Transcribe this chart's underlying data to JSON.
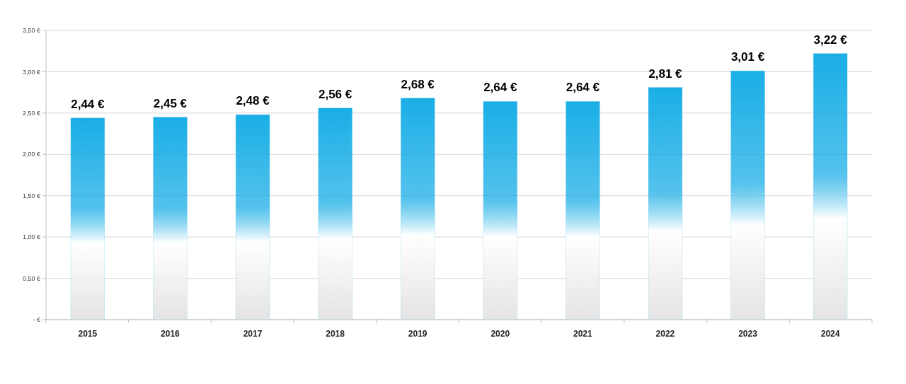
{
  "chart_data": {
    "type": "bar",
    "categories": [
      "2015",
      "2016",
      "2017",
      "2018",
      "2019",
      "2020",
      "2021",
      "2022",
      "2023",
      "2024"
    ],
    "values": [
      2.44,
      2.45,
      2.48,
      2.56,
      2.68,
      2.64,
      2.64,
      2.81,
      3.01,
      3.22
    ],
    "value_labels": [
      "2,44 €",
      "2,45 €",
      "2,48 €",
      "2,56 €",
      "2,68 €",
      "2,64 €",
      "2,64 €",
      "2,81 €",
      "3,01 €",
      "3,22 €"
    ],
    "color": "#1aaee6",
    "ylim": [
      0,
      3.5
    ],
    "yticks": [
      {
        "value": 0,
        "label": "- €"
      },
      {
        "value": 0.5,
        "label": "0,50 €"
      },
      {
        "value": 1,
        "label": "1,00 €"
      },
      {
        "value": 1.5,
        "label": "1,50 €"
      },
      {
        "value": 2,
        "label": "2,00 €"
      },
      {
        "value": 2.5,
        "label": "2,50 €"
      },
      {
        "value": 3,
        "label": "3,00 €"
      },
      {
        "value": 3.5,
        "label": "3,50 €"
      }
    ],
    "grid": "y"
  }
}
